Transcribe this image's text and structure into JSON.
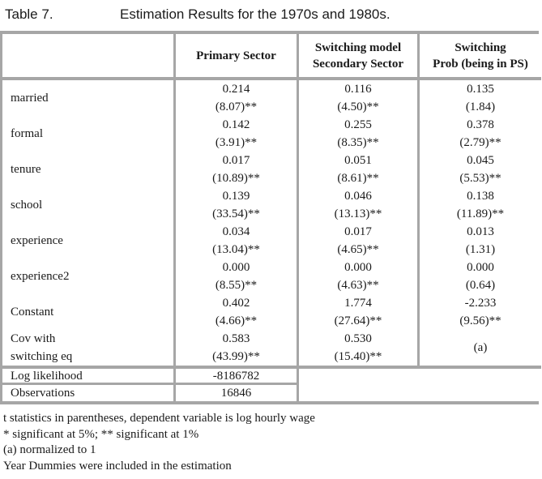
{
  "title": {
    "label": "Table 7.",
    "text": "Estimation Results for the 1970s and 1980s."
  },
  "table": {
    "header": {
      "col2": "Primary Sector",
      "col3_line1": "Switching model",
      "col3_line2": "Secondary Sector",
      "col4_line1": "Switching",
      "col4_line2": "Prob (being in PS)"
    },
    "rows": [
      {
        "label1": "married",
        "label2": "",
        "c1v": "0.214",
        "c1t": "(8.07)**",
        "c2v": "0.116",
        "c2t": "(4.50)**",
        "c3v": "0.135",
        "c3t": "(1.84)"
      },
      {
        "label1": "formal",
        "label2": "",
        "c1v": "0.142",
        "c1t": "(3.91)**",
        "c2v": "0.255",
        "c2t": "(8.35)**",
        "c3v": "0.378",
        "c3t": "(2.79)**"
      },
      {
        "label1": "tenure",
        "label2": "",
        "c1v": "0.017",
        "c1t": "(10.89)**",
        "c2v": "0.051",
        "c2t": "(8.61)**",
        "c3v": "0.045",
        "c3t": "(5.53)**"
      },
      {
        "label1": "school",
        "label2": "",
        "c1v": "0.139",
        "c1t": "(33.54)**",
        "c2v": "0.046",
        "c2t": "(13.13)**",
        "c3v": "0.138",
        "c3t": "(11.89)**"
      },
      {
        "label1": "experience",
        "label2": "",
        "c1v": "0.034",
        "c1t": "(13.04)**",
        "c2v": "0.017",
        "c2t": "(4.65)**",
        "c3v": "0.013",
        "c3t": "(1.31)"
      },
      {
        "label1": "experience2",
        "label2": "",
        "c1v": "0.000",
        "c1t": "(8.55)**",
        "c2v": "0.000",
        "c2t": "(4.63)**",
        "c3v": "0.000",
        "c3t": "(0.64)"
      },
      {
        "label1": "Constant",
        "label2": "",
        "c1v": "0.402",
        "c1t": "(4.66)**",
        "c2v": "1.774",
        "c2t": "(27.64)**",
        "c3v": "-2.233",
        "c3t": "(9.56)**"
      },
      {
        "label1": "Cov with",
        "label2": "switching eq",
        "c1v": "0.583",
        "c1t": "(43.99)**",
        "c2v": "0.530",
        "c2t": "(15.40)**",
        "c3v": "(a)",
        "c3t": ""
      }
    ],
    "summary": {
      "log_likelihood_label": "Log likelihood",
      "log_likelihood_value": "-8186782",
      "observations_label": "Observations",
      "observations_value": "16846"
    }
  },
  "footnotes": {
    "line1": "t statistics in parentheses, dependent variable is log hourly wage",
    "line2": "* significant at 5%; ** significant at 1%",
    "line3": "(a) normalized to 1",
    "line4": "Year Dummies were included in the estimation"
  },
  "colors": {
    "border_gray": "#a6a6a6",
    "text": "#1a1a1a",
    "background": "#ffffff"
  }
}
